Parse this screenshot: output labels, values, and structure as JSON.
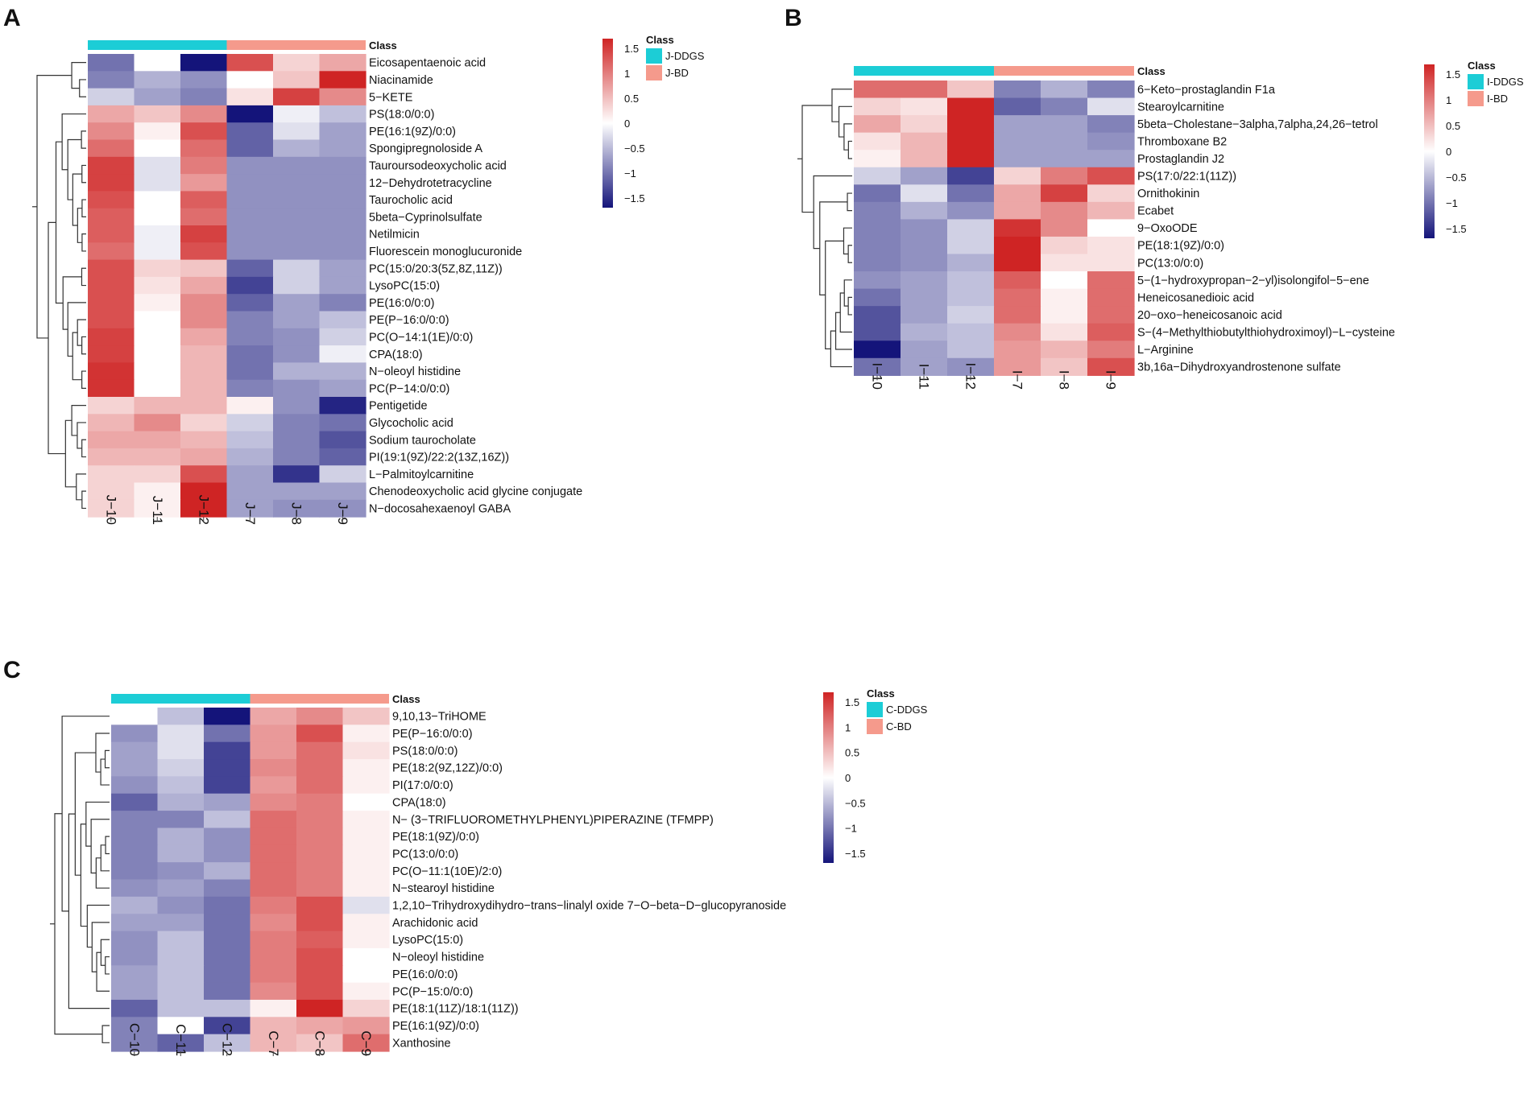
{
  "scale_colors": {
    "low": "#14147a",
    "mid": "#ffffff",
    "high": "#cf2424"
  },
  "chart_data": [
    {
      "type": "heatmap",
      "panel_label": "A",
      "class_header": "Class",
      "legend_title": "Class",
      "groups": [
        {
          "name": "J-DDGS",
          "color": "#1ccdd6",
          "columns": 3
        },
        {
          "name": "J-BD",
          "color": "#f59a8c",
          "columns": 3
        }
      ],
      "columns": [
        "J−10",
        "J−11",
        "J−12",
        "J−7",
        "J−8",
        "J−9"
      ],
      "color_scale": {
        "min": -1.5,
        "max": 1.5,
        "ticks": [
          "1.5",
          "1",
          "0.5",
          "0",
          "−0.5",
          "−1",
          "−1.5"
        ]
      },
      "rows": [
        "Eicosapentaenoic acid",
        "Niacinamide",
        "5−KETE",
        "PS(18:0/0:0)",
        "PE(16:1(9Z)/0:0)",
        "Spongipregnoloside A",
        "Tauroursodeoxycholic acid",
        "12−Dehydrotetracycline",
        "Taurocholic acid",
        "5beta−Cyprinolsulfate",
        "Netilmicin",
        "Fluorescein monoglucuronide",
        "PC(15:0/20:3(5Z,8Z,11Z))",
        "LysoPC(15:0)",
        "PE(16:0/0:0)",
        "PE(P−16:0/0:0)",
        "PC(O−14:1(1E)/0:0)",
        "CPA(18:0)",
        "N−oleoyl histidine",
        "PC(P−14:0/0:0)",
        "Pentigetide",
        "Glycocholic acid",
        "Sodium taurocholate",
        "PI(19:1(9Z)/22:2(13Z,16Z))",
        "L−Palmitoylcarnitine",
        "Chenodeoxycholic acid glycine conjugate",
        "N−docosahexaenoyl GABA"
      ],
      "values": [
        [
          -0.9,
          0.0,
          -1.5,
          1.2,
          0.3,
          0.6
        ],
        [
          -0.8,
          -0.5,
          -0.7,
          0.0,
          0.4,
          1.5
        ],
        [
          -0.3,
          -0.6,
          -0.8,
          0.2,
          1.3,
          0.8
        ],
        [
          0.6,
          0.4,
          0.8,
          -1.6,
          -0.1,
          -0.4
        ],
        [
          0.8,
          0.1,
          1.2,
          -1.0,
          -0.2,
          -0.6
        ],
        [
          1.0,
          0.0,
          1.0,
          -1.0,
          -0.5,
          -0.6
        ],
        [
          1.3,
          -0.2,
          0.9,
          -0.7,
          -0.7,
          -0.7
        ],
        [
          1.3,
          -0.2,
          0.7,
          -0.7,
          -0.7,
          -0.7
        ],
        [
          1.2,
          0.0,
          1.1,
          -0.7,
          -0.7,
          -0.7
        ],
        [
          1.1,
          0.0,
          1.0,
          -0.7,
          -0.7,
          -0.7
        ],
        [
          1.1,
          -0.1,
          1.3,
          -0.7,
          -0.7,
          -0.7
        ],
        [
          1.0,
          -0.1,
          1.2,
          -0.7,
          -0.7,
          -0.7
        ],
        [
          1.2,
          0.3,
          0.4,
          -1.0,
          -0.3,
          -0.6
        ],
        [
          1.2,
          0.2,
          0.6,
          -1.2,
          -0.3,
          -0.6
        ],
        [
          1.2,
          0.1,
          0.8,
          -1.0,
          -0.6,
          -0.8
        ],
        [
          1.2,
          0.0,
          0.8,
          -0.8,
          -0.6,
          -0.4
        ],
        [
          1.3,
          0.0,
          0.6,
          -0.8,
          -0.7,
          -0.3
        ],
        [
          1.3,
          0.0,
          0.5,
          -0.9,
          -0.7,
          -0.1
        ],
        [
          1.4,
          0.0,
          0.5,
          -0.9,
          -0.5,
          -0.5
        ],
        [
          1.4,
          0.0,
          0.5,
          -0.8,
          -0.7,
          -0.6
        ],
        [
          0.3,
          0.5,
          0.5,
          0.1,
          -0.7,
          -1.4
        ],
        [
          0.5,
          0.8,
          0.3,
          -0.3,
          -0.8,
          -0.9
        ],
        [
          0.6,
          0.6,
          0.5,
          -0.4,
          -0.8,
          -1.1
        ],
        [
          0.5,
          0.5,
          0.6,
          -0.5,
          -0.8,
          -1.0
        ],
        [
          0.3,
          0.3,
          1.2,
          -0.6,
          -1.3,
          -0.3
        ],
        [
          0.3,
          0.1,
          1.5,
          -0.6,
          -0.6,
          -0.6
        ],
        [
          0.3,
          0.1,
          1.6,
          -0.6,
          -0.7,
          -0.7
        ]
      ]
    },
    {
      "type": "heatmap",
      "panel_label": "B",
      "class_header": "Class",
      "legend_title": "Class",
      "groups": [
        {
          "name": "I-DDGS",
          "color": "#1ccdd6",
          "columns": 3
        },
        {
          "name": "I-BD",
          "color": "#f59a8c",
          "columns": 3
        }
      ],
      "columns": [
        "I−10",
        "I−11",
        "I−12",
        "I−7",
        "I−8",
        "I−9"
      ],
      "color_scale": {
        "min": -1.5,
        "max": 1.5,
        "ticks": [
          "1.5",
          "1",
          "0.5",
          "0",
          "−0.5",
          "−1",
          "−1.5"
        ]
      },
      "rows": [
        "6−Keto−prostaglandin F1a",
        "Stearoylcarnitine",
        "5beta−Cholestane−3alpha,7alpha,24,26−tetrol",
        "Thromboxane B2",
        "Prostaglandin J2",
        "PS(17:0/22:1(11Z))",
        "Ornithokinin",
        "Ecabet",
        "9−OxoODE",
        "PE(18:1(9Z)/0:0)",
        "PC(13:0/0:0)",
        "5−(1−hydroxypropan−2−yl)isolongifol−5−ene",
        "Heneicosanedioic acid",
        "20−oxo−heneicosanoic acid",
        "S−(4−Methylthiobutylthiohydroximoyl)−L−cysteine",
        "L−Arginine",
        "3b,16a−Dihydroxyandrostenone sulfate"
      ],
      "values": [
        [
          1.0,
          1.0,
          0.4,
          -0.8,
          -0.5,
          -0.8
        ],
        [
          0.3,
          0.2,
          1.5,
          -1.0,
          -0.8,
          -0.2
        ],
        [
          0.6,
          0.3,
          1.5,
          -0.6,
          -0.6,
          -0.8
        ],
        [
          0.2,
          0.5,
          1.5,
          -0.6,
          -0.6,
          -0.7
        ],
        [
          0.1,
          0.5,
          1.5,
          -0.6,
          -0.6,
          -0.6
        ],
        [
          -0.3,
          -0.6,
          -1.2,
          0.3,
          0.9,
          1.2
        ],
        [
          -0.9,
          -0.2,
          -0.9,
          0.6,
          1.3,
          0.3
        ],
        [
          -0.8,
          -0.5,
          -0.7,
          0.6,
          0.8,
          0.5
        ],
        [
          -0.8,
          -0.7,
          -0.3,
          1.4,
          0.8,
          0.0
        ],
        [
          -0.8,
          -0.7,
          -0.3,
          1.5,
          0.3,
          0.2
        ],
        [
          -0.8,
          -0.7,
          -0.5,
          1.5,
          0.2,
          0.2
        ],
        [
          -0.7,
          -0.6,
          -0.4,
          1.1,
          0.0,
          1.0
        ],
        [
          -0.9,
          -0.6,
          -0.4,
          1.0,
          0.1,
          1.0
        ],
        [
          -1.1,
          -0.6,
          -0.3,
          1.0,
          0.1,
          1.0
        ],
        [
          -1.1,
          -0.5,
          -0.4,
          0.8,
          0.2,
          1.1
        ],
        [
          -1.5,
          -0.6,
          -0.4,
          0.7,
          0.5,
          0.9
        ],
        [
          -0.9,
          -0.6,
          -0.7,
          0.7,
          0.4,
          1.2
        ]
      ]
    },
    {
      "type": "heatmap",
      "panel_label": "C",
      "class_header": "Class",
      "legend_title": "Class",
      "groups": [
        {
          "name": "C-DDGS",
          "color": "#1ccdd6",
          "columns": 3
        },
        {
          "name": "C-BD",
          "color": "#f59a8c",
          "columns": 3
        }
      ],
      "columns": [
        "C−10",
        "C−11",
        "C−12",
        "C−7",
        "C−8",
        "C−9"
      ],
      "color_scale": {
        "min": -1.5,
        "max": 1.5,
        "ticks": [
          "1.5",
          "1",
          "0.5",
          "0",
          "−0.5",
          "−1",
          "−1.5"
        ]
      },
      "rows": [
        "9,10,13−TriHOME",
        "PE(P−16:0/0:0)",
        "PS(18:0/0:0)",
        "PE(18:2(9Z,12Z)/0:0)",
        "PI(17:0/0:0)",
        "CPA(18:0)",
        "N− (3−TRIFLUOROMETHYLPHENYL)PIPERAZINE (TFMPP)",
        "PE(18:1(9Z)/0:0)",
        "PC(13:0/0:0)",
        "PC(O−11:1(10E)/2:0)",
        "N−stearoyl histidine",
        "1,2,10−Trihydroxydihydro−trans−linalyl oxide 7−O−beta−D−glucopyranoside",
        "Arachidonic acid",
        "LysoPC(15:0)",
        "N−oleoyl histidine",
        "PE(16:0/0:0)",
        "PC(P−15:0/0:0)",
        "PE(18:1(11Z)/18:1(11Z))",
        "PE(16:1(9Z)/0:0)",
        "Xanthosine"
      ],
      "values": [
        [
          0.0,
          -0.4,
          -1.6,
          0.6,
          0.8,
          0.4
        ],
        [
          -0.7,
          -0.2,
          -0.9,
          0.7,
          1.2,
          0.1
        ],
        [
          -0.6,
          -0.2,
          -1.2,
          0.7,
          1.0,
          0.2
        ],
        [
          -0.6,
          -0.3,
          -1.2,
          0.8,
          1.0,
          0.1
        ],
        [
          -0.7,
          -0.4,
          -1.2,
          0.7,
          1.0,
          0.1
        ],
        [
          -1.0,
          -0.5,
          -0.6,
          0.8,
          0.9,
          0.0
        ],
        [
          -0.8,
          -0.8,
          -0.4,
          1.0,
          0.9,
          0.1
        ],
        [
          -0.8,
          -0.5,
          -0.7,
          1.0,
          0.9,
          0.1
        ],
        [
          -0.8,
          -0.5,
          -0.7,
          1.0,
          0.9,
          0.1
        ],
        [
          -0.8,
          -0.7,
          -0.5,
          1.0,
          0.9,
          0.1
        ],
        [
          -0.7,
          -0.6,
          -0.8,
          1.0,
          0.9,
          0.1
        ],
        [
          -0.5,
          -0.7,
          -0.9,
          0.9,
          1.2,
          -0.2
        ],
        [
          -0.6,
          -0.6,
          -0.9,
          0.8,
          1.2,
          0.1
        ],
        [
          -0.7,
          -0.4,
          -0.9,
          0.9,
          1.1,
          0.1
        ],
        [
          -0.7,
          -0.4,
          -0.9,
          0.9,
          1.2,
          0.0
        ],
        [
          -0.6,
          -0.4,
          -0.9,
          0.9,
          1.2,
          0.0
        ],
        [
          -0.6,
          -0.4,
          -0.9,
          0.8,
          1.2,
          0.1
        ],
        [
          -1.0,
          -0.4,
          -0.4,
          0.1,
          1.5,
          0.3
        ],
        [
          -0.8,
          0.0,
          -1.2,
          0.5,
          0.6,
          0.7
        ],
        [
          -0.8,
          -1.0,
          -0.4,
          0.5,
          0.4,
          1.0
        ]
      ]
    }
  ]
}
